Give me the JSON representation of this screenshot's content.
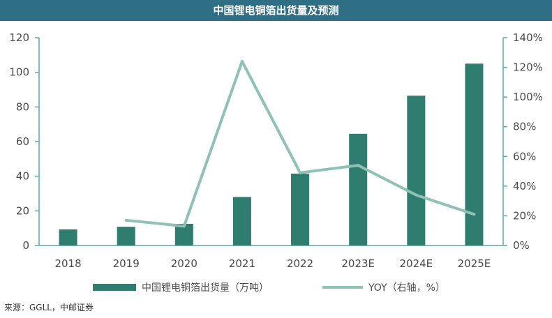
{
  "chart_data": {
    "type": "bar",
    "title": "中国锂电铜箔出货量及预测",
    "categories": [
      "2018",
      "2019",
      "2020",
      "2021",
      "2022",
      "2023E",
      "2024E",
      "2025E"
    ],
    "series": [
      {
        "name": "中国锂电铜箔出货量（万吨）",
        "type": "bar",
        "axis": "left",
        "values": [
          9.3,
          10.8,
          12.5,
          28,
          41.5,
          64.5,
          86.5,
          105
        ]
      },
      {
        "name": "YOY（右轴，%）",
        "type": "line",
        "axis": "right",
        "x": [
          "2019",
          "2020",
          "2021",
          "2022",
          "2023E",
          "2024E",
          "2025E"
        ],
        "values": [
          17,
          13,
          124,
          49,
          54,
          34,
          21
        ]
      }
    ],
    "y_left": {
      "min": 0,
      "max": 120,
      "step": 20,
      "ticks": [
        "0",
        "20",
        "40",
        "60",
        "80",
        "100",
        "120"
      ]
    },
    "y_right": {
      "min": 0,
      "max": 140,
      "step": 20,
      "ticks": [
        "0%",
        "20%",
        "40%",
        "60%",
        "80%",
        "100%",
        "120%",
        "140%"
      ]
    },
    "grid": false,
    "legend_position": "bottom",
    "colors": {
      "bar": "#2e7d6f",
      "line": "#8fc1b5",
      "title_bg": "#2f6f86",
      "axis": "#5fa99a"
    }
  },
  "source": "来源：GGLL，中邮证券"
}
